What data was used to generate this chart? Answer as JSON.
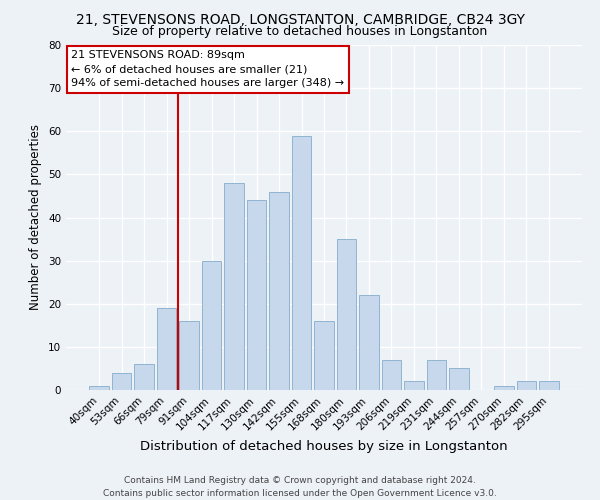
{
  "title": "21, STEVENSONS ROAD, LONGSTANTON, CAMBRIDGE, CB24 3GY",
  "subtitle": "Size of property relative to detached houses in Longstanton",
  "xlabel": "Distribution of detached houses by size in Longstanton",
  "ylabel": "Number of detached properties",
  "footer_line1": "Contains HM Land Registry data © Crown copyright and database right 2024.",
  "footer_line2": "Contains public sector information licensed under the Open Government Licence v3.0.",
  "bar_labels": [
    "40sqm",
    "53sqm",
    "66sqm",
    "79sqm",
    "91sqm",
    "104sqm",
    "117sqm",
    "130sqm",
    "142sqm",
    "155sqm",
    "168sqm",
    "180sqm",
    "193sqm",
    "206sqm",
    "219sqm",
    "231sqm",
    "244sqm",
    "257sqm",
    "270sqm",
    "282sqm",
    "295sqm"
  ],
  "bar_values": [
    1,
    4,
    6,
    19,
    16,
    30,
    48,
    44,
    46,
    59,
    16,
    35,
    22,
    7,
    2,
    7,
    5,
    0,
    1,
    2,
    2
  ],
  "bar_color": "#c8d8ec",
  "bar_edge_color": "#90b4d0",
  "ylim": [
    0,
    80
  ],
  "yticks": [
    0,
    10,
    20,
    30,
    40,
    50,
    60,
    70,
    80
  ],
  "reference_line_color": "#cc0000",
  "annotation_title": "21 STEVENSONS ROAD: 89sqm",
  "annotation_line1": "← 6% of detached houses are smaller (21)",
  "annotation_line2": "94% of semi-detached houses are larger (348) →",
  "annotation_box_color": "#ffffff",
  "annotation_box_edge_color": "#cc0000",
  "background_color": "#edf2f7",
  "plot_background_color": "#edf2f7",
  "grid_color": "#ffffff",
  "title_fontsize": 10,
  "subtitle_fontsize": 9,
  "xlabel_fontsize": 9.5,
  "ylabel_fontsize": 8.5,
  "tick_fontsize": 7.5,
  "annotation_fontsize": 8,
  "footer_fontsize": 6.5
}
